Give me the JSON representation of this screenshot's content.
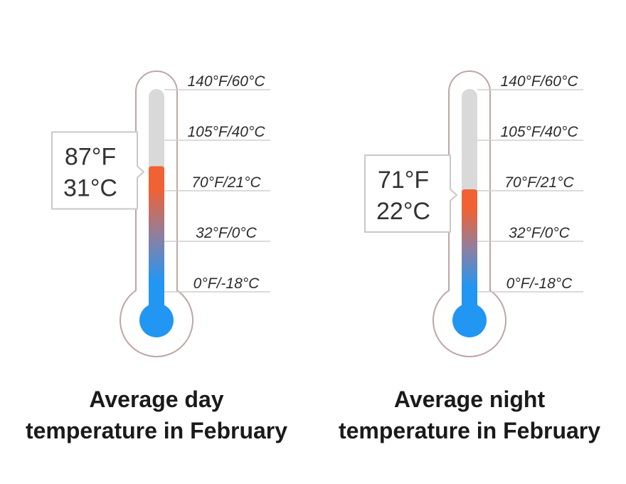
{
  "chart_data": [
    {
      "type": "thermometer",
      "title": "Average day temperature in February",
      "title_lines": [
        "Average day",
        "temperature in February"
      ],
      "value_f": 87,
      "value_c": 31,
      "readout": [
        "87°F",
        "31°C"
      ],
      "ticks": [
        {
          "f": 140,
          "c": 60,
          "label": "140°F/60°C"
        },
        {
          "f": 105,
          "c": 40,
          "label": "105°F/40°C"
        },
        {
          "f": 70,
          "c": 21,
          "label": "70°F/21°C"
        },
        {
          "f": 32,
          "c": 0,
          "label": "32°F/0°C"
        },
        {
          "f": 0,
          "c": -18,
          "label": "0°F/-18°C"
        }
      ]
    },
    {
      "type": "thermometer",
      "title": "Average night temperature in February",
      "title_lines": [
        "Average night",
        "temperature in February"
      ],
      "value_f": 71,
      "value_c": 22,
      "readout": [
        "71°F",
        "22°C"
      ],
      "ticks": [
        {
          "f": 140,
          "c": 60,
          "label": "140°F/60°C"
        },
        {
          "f": 105,
          "c": 40,
          "label": "105°F/40°C"
        },
        {
          "f": 70,
          "c": 21,
          "label": "70°F/21°C"
        },
        {
          "f": 32,
          "c": 0,
          "label": "32°F/0°C"
        },
        {
          "f": 0,
          "c": -18,
          "label": "0°F/-18°C"
        }
      ]
    }
  ],
  "colors": {
    "outline": "#bfa6a6",
    "track": "#d9d9d9",
    "hot": "#f06234",
    "cold": "#2196f3",
    "tick_line": "#cfcfcf",
    "readout_border": "#c8c8c8"
  }
}
